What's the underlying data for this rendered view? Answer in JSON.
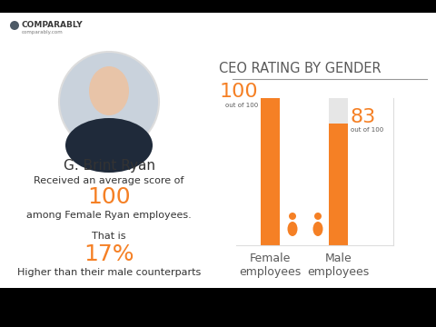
{
  "logo": {
    "name": "COMPARABLY",
    "site": "comparably.com"
  },
  "profile": {
    "name": "G. Brint Ryan",
    "score_intro": "Received an average score of",
    "score": 100,
    "score_group": "among Female Ryan employees.",
    "diff_intro": "That is",
    "difference": "17%",
    "diff_text": "Higher than their male counterparts"
  },
  "chart_data": {
    "type": "bar",
    "title": "CEO RATING BY GENDER",
    "categories": [
      "Female employees",
      "Male employees"
    ],
    "values": [
      100,
      83
    ],
    "color": "#f58025",
    "ylim": [
      0,
      100
    ],
    "data_labels": true,
    "tick_labels": "x",
    "annotations": [
      "out of 100",
      "out of 100"
    ]
  }
}
